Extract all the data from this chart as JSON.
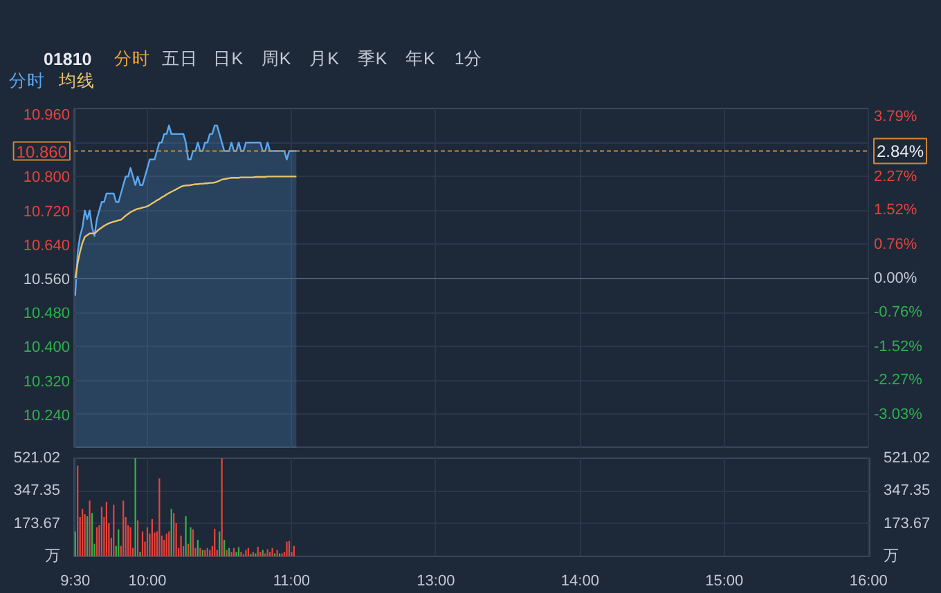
{
  "chart_data": [
    {
      "type": "line",
      "title": "01810",
      "annotations": [
        "分时",
        "五日",
        "日K",
        "周K",
        "月K",
        "季K",
        "年K",
        "1分",
        {
          "text": "2.84%",
          "y": 10.86
        }
      ],
      "legend": "top left",
      "grid": true,
      "tick_labels": "y",
      "categories": [
        null,
        null,
        null,
        null,
        null,
        null,
        null,
        null,
        null,
        null,
        null,
        null,
        null,
        null,
        null,
        null,
        null,
        null,
        null,
        null,
        null,
        null,
        null,
        null,
        null,
        null,
        null,
        null,
        null,
        null,
        null,
        null,
        null,
        null,
        null,
        null,
        null,
        null,
        null,
        null,
        null,
        null,
        null,
        null,
        null,
        null,
        null,
        null,
        null,
        null,
        null,
        null,
        null,
        null,
        null,
        null,
        null,
        null,
        null,
        null,
        null,
        null,
        null,
        null,
        null,
        null,
        null,
        null,
        null,
        null,
        null,
        null,
        null,
        null,
        null,
        null,
        null,
        null,
        null,
        null,
        null,
        null,
        null,
        null,
        null,
        null,
        null,
        null,
        null,
        null,
        null,
        null,
        null,
        null,
        null,
        null,
        null,
        null,
        null,
        null,
        null,
        null,
        null,
        null,
        null,
        null,
        null,
        null,
        null,
        null,
        null,
        null,
        null,
        null,
        null,
        null,
        null,
        null,
        null,
        null,
        null,
        null,
        null,
        null,
        null,
        null,
        null,
        null,
        null,
        null,
        null,
        null,
        null,
        null,
        null,
        null,
        null,
        null,
        null,
        null,
        null,
        null,
        null,
        null,
        null,
        null,
        null,
        null,
        null,
        null,
        null,
        null,
        null,
        null,
        null,
        null,
        null,
        null,
        null,
        null,
        null,
        null,
        null,
        null,
        null,
        null,
        null,
        null,
        null,
        null,
        null,
        null,
        null,
        null,
        null,
        null,
        null,
        null,
        null,
        null,
        null,
        null,
        null,
        null,
        null,
        null,
        null,
        null,
        null,
        null,
        null,
        null,
        null,
        null,
        null,
        null,
        null,
        null,
        null,
        null,
        null,
        null,
        null,
        null,
        null,
        null,
        null,
        null,
        null,
        null,
        null,
        null,
        null,
        null,
        null,
        null,
        null,
        null,
        null,
        null,
        null,
        null,
        null,
        null,
        null,
        null,
        null,
        null,
        null,
        null,
        null,
        null,
        null,
        null,
        null,
        null,
        null,
        null,
        null,
        null,
        null,
        null,
        null,
        null,
        null,
        null,
        null,
        null,
        null,
        null,
        null,
        null,
        null,
        null,
        null,
        null,
        null,
        null,
        null,
        null,
        null,
        null,
        null,
        null,
        null,
        null,
        null,
        null,
        null,
        null,
        null,
        null,
        null,
        null,
        null,
        null,
        null,
        null,
        null,
        null,
        null,
        null,
        null,
        null,
        null,
        null,
        null,
        null,
        null,
        null,
        null,
        null,
        null,
        null,
        null,
        null,
        null,
        null,
        null,
        null,
        null,
        null,
        null,
        null,
        null,
        null,
        null,
        null,
        null,
        null,
        null,
        null,
        null,
        null,
        null,
        null,
        null,
        null,
        null,
        null,
        null,
        null,
        null,
        null,
        null,
        null,
        null,
        null,
        null,
        null,
        null
      ],
      "ylim": [
        10.16,
        10.96
      ],
      "yticks": [
        {
          "value": 10.96,
          "label": "10.960"
        },
        {
          "value": 10.88,
          "label": null
        },
        {
          "value": 10.8,
          "label": "10.800"
        },
        {
          "value": 10.72,
          "label": "10.720"
        },
        {
          "value": 10.64,
          "label": "10.640"
        },
        {
          "value": 10.56,
          "label": "10.560"
        },
        {
          "value": 10.48,
          "label": "10.480"
        },
        {
          "value": 10.4,
          "label": "10.400"
        },
        {
          "value": 10.32,
          "label": "10.320"
        },
        {
          "value": 10.24,
          "label": "10.240"
        }
      ],
      "y2lim": [
        -3.79,
        3.79
      ],
      "y2ticks": [
        {
          "value": 3.79,
          "label": "3.79%"
        },
        {
          "value": 3.03,
          "label": null
        },
        {
          "value": 2.27,
          "label": "2.27%"
        },
        {
          "value": 1.52,
          "label": "1.52%"
        },
        {
          "value": 0.76,
          "label": "0.76%"
        },
        {
          "value": 0,
          "label": "0.00%"
        },
        {
          "value": -0.76,
          "label": "-0.76%"
        },
        {
          "value": -1.52,
          "label": "-1.52%"
        },
        {
          "value": -2.27,
          "label": "-2.27%"
        },
        {
          "value": -3.03,
          "label": "-3.03%"
        }
      ],
      "ref_lines": [
        {
          "axis": "y",
          "value": 10.56,
          "color": "#4f5c71"
        },
        {
          "axis": "y",
          "value": 10.86,
          "label": "10.860",
          "color": "#cf8836",
          "line_style": "dashed"
        }
      ],
      "series": [
        {
          "name": "分时",
          "type": "area",
          "color": "#5aa8f0",
          "values": [
            10.52,
            10.62,
            10.66,
            10.68,
            10.72,
            10.7,
            10.72,
            10.68,
            10.66,
            10.7,
            10.72,
            10.74,
            10.74,
            10.76,
            10.76,
            10.76,
            10.76,
            10.74,
            10.74,
            10.76,
            10.78,
            10.8,
            10.8,
            10.82,
            10.8,
            10.78,
            10.8,
            10.78,
            10.78,
            10.8,
            10.82,
            10.84,
            10.84,
            10.84,
            10.86,
            10.88,
            10.88,
            10.9,
            10.9,
            10.92,
            10.9,
            10.9,
            10.9,
            10.9,
            10.9,
            10.9,
            10.88,
            10.84,
            10.84,
            10.86,
            10.86,
            10.88,
            10.86,
            10.86,
            10.88,
            10.88,
            10.9,
            10.9,
            10.92,
            10.92,
            10.9,
            10.88,
            10.86,
            10.86,
            10.86,
            10.88,
            10.86,
            10.86,
            10.88,
            10.86,
            10.86,
            10.88,
            10.88,
            10.88,
            10.88,
            10.88,
            10.88,
            10.88,
            10.86,
            10.86,
            10.88,
            10.86,
            10.86,
            10.86,
            10.86,
            10.86,
            10.86,
            10.86,
            10.84,
            10.86,
            10.86,
            10.86,
            10.86,
            null,
            null,
            null,
            null,
            null,
            null,
            null,
            null,
            null,
            null,
            null,
            null,
            null,
            null,
            null,
            null,
            null,
            null,
            null,
            null,
            null,
            null,
            null,
            null,
            null,
            null,
            null,
            null,
            null,
            null,
            null,
            null,
            null,
            null,
            null,
            null,
            null,
            null,
            null,
            null,
            null,
            null,
            null,
            null,
            null,
            null,
            null,
            null,
            null,
            null,
            null,
            null,
            null,
            null,
            null,
            null,
            null,
            null,
            null,
            null,
            null,
            null,
            null,
            null,
            null,
            null,
            null,
            null,
            null,
            null,
            null,
            null,
            null,
            null,
            null,
            null,
            null,
            null,
            null,
            null,
            null,
            null,
            null,
            null,
            null,
            null,
            null,
            null,
            null,
            null,
            null,
            null,
            null,
            null,
            null,
            null,
            null,
            null,
            null,
            null,
            null,
            null,
            null,
            null,
            null,
            null,
            null,
            null,
            null,
            null,
            null,
            null,
            null,
            null,
            null,
            null,
            null,
            null,
            null,
            null,
            null,
            null,
            null,
            null,
            null,
            null,
            null,
            null,
            null,
            null,
            null,
            null,
            null,
            null,
            null,
            null,
            null,
            null,
            null,
            null,
            null,
            null,
            null,
            null,
            null,
            null,
            null,
            null,
            null,
            null,
            null,
            null,
            null,
            null,
            null,
            null,
            null,
            null,
            null,
            null,
            null,
            null,
            null,
            null,
            null,
            null,
            null,
            null,
            null,
            null,
            null,
            null,
            null,
            null,
            null,
            null,
            null,
            null,
            null,
            null,
            null,
            null,
            null,
            null,
            null,
            null,
            null,
            null,
            null,
            null,
            null,
            null,
            null,
            null,
            null,
            null,
            null,
            null,
            null,
            null,
            null,
            null,
            null,
            null,
            null,
            null,
            null,
            null,
            null,
            null,
            null,
            null,
            null,
            null,
            null,
            null,
            null,
            null,
            null,
            null,
            null,
            null,
            null,
            null,
            null,
            null,
            null,
            null,
            null,
            null,
            null,
            null,
            null,
            null,
            null,
            null,
            null,
            null
          ]
        },
        {
          "name": "均线",
          "type": "line",
          "color": "#e9c46a",
          "values": [
            10.56,
            10.596,
            10.623,
            10.644,
            10.658,
            10.662,
            10.666,
            10.666,
            10.666,
            10.671,
            10.676,
            10.68,
            10.684,
            10.687,
            10.69,
            10.692,
            10.694,
            10.695,
            10.697,
            10.698,
            10.703,
            10.708,
            10.712,
            10.716,
            10.719,
            10.722,
            10.724,
            10.725,
            10.727,
            10.728,
            10.73,
            10.733,
            10.737,
            10.74,
            10.744,
            10.747,
            10.751,
            10.754,
            10.758,
            10.761,
            10.764,
            10.767,
            10.77,
            10.773,
            10.776,
            10.778,
            10.779,
            10.779,
            10.78,
            10.781,
            10.782,
            10.782,
            10.783,
            10.783,
            10.784,
            10.784,
            10.785,
            10.785,
            10.786,
            10.788,
            10.79,
            10.793,
            10.794,
            10.795,
            10.796,
            10.797,
            10.797,
            10.797,
            10.797,
            10.798,
            10.798,
            10.798,
            10.798,
            10.798,
            10.798,
            10.799,
            10.799,
            10.799,
            10.799,
            10.799,
            10.8,
            10.8,
            10.8,
            10.8,
            10.8,
            10.8,
            10.8,
            10.8,
            10.8,
            10.8,
            10.8,
            10.8,
            10.8,
            null,
            null,
            null,
            null,
            null,
            null,
            null,
            null,
            null,
            null,
            null,
            null,
            null,
            null,
            null,
            null,
            null,
            null,
            null,
            null,
            null,
            null,
            null,
            null,
            null,
            null,
            null,
            null,
            null,
            null,
            null,
            null,
            null,
            null,
            null,
            null,
            null,
            null,
            null,
            null,
            null,
            null,
            null,
            null,
            null,
            null,
            null,
            null,
            null,
            null,
            null,
            null,
            null,
            null,
            null,
            null,
            null,
            null,
            null,
            null,
            null,
            null,
            null,
            null,
            null,
            null,
            null,
            null,
            null,
            null,
            null,
            null,
            null,
            null,
            null,
            null,
            null,
            null,
            null,
            null,
            null,
            null,
            null,
            null,
            null,
            null,
            null,
            null,
            null,
            null,
            null,
            null,
            null,
            null,
            null,
            null,
            null,
            null,
            null,
            null,
            null,
            null,
            null,
            null,
            null,
            null,
            null,
            null,
            null,
            null,
            null,
            null,
            null,
            null,
            null,
            null,
            null,
            null,
            null,
            null,
            null,
            null,
            null,
            null,
            null,
            null,
            null,
            null,
            null,
            null,
            null,
            null,
            null,
            null,
            null,
            null,
            null,
            null,
            null,
            null,
            null,
            null,
            null,
            null,
            null,
            null,
            null,
            null,
            null,
            null,
            null,
            null,
            null,
            null,
            null,
            null,
            null,
            null,
            null,
            null,
            null,
            null,
            null,
            null,
            null,
            null,
            null,
            null,
            null,
            null,
            null,
            null,
            null,
            null,
            null,
            null,
            null,
            null,
            null,
            null,
            null,
            null,
            null,
            null,
            null,
            null,
            null,
            null,
            null,
            null,
            null,
            null,
            null,
            null,
            null,
            null,
            null,
            null,
            null,
            null,
            null,
            null,
            null,
            null,
            null,
            null,
            null,
            null,
            null,
            null,
            null,
            null,
            null,
            null,
            null,
            null,
            null,
            null,
            null,
            null,
            null,
            null,
            null,
            null,
            null,
            null,
            null,
            null,
            null,
            null,
            null,
            null,
            null,
            null,
            null,
            null,
            null,
            null
          ]
        }
      ]
    },
    {
      "type": "bar",
      "grid": true,
      "categories": [
        "9:30",
        null,
        null,
        null,
        null,
        null,
        null,
        null,
        null,
        null,
        null,
        null,
        null,
        null,
        null,
        null,
        null,
        null,
        null,
        null,
        null,
        null,
        null,
        null,
        null,
        null,
        null,
        null,
        null,
        null,
        "10:00",
        null,
        null,
        null,
        null,
        null,
        null,
        null,
        null,
        null,
        null,
        null,
        null,
        null,
        null,
        null,
        null,
        null,
        null,
        null,
        null,
        null,
        null,
        null,
        null,
        null,
        null,
        null,
        null,
        null,
        null,
        null,
        null,
        null,
        null,
        null,
        null,
        null,
        null,
        null,
        null,
        null,
        null,
        null,
        null,
        null,
        null,
        null,
        null,
        null,
        null,
        null,
        null,
        null,
        null,
        null,
        null,
        null,
        null,
        null,
        "11:00",
        null,
        null,
        null,
        null,
        null,
        null,
        null,
        null,
        null,
        null,
        null,
        null,
        null,
        null,
        null,
        null,
        null,
        null,
        null,
        null,
        null,
        null,
        null,
        null,
        null,
        null,
        null,
        null,
        null,
        null,
        null,
        null,
        null,
        null,
        null,
        null,
        null,
        null,
        null,
        null,
        null,
        null,
        null,
        null,
        null,
        null,
        null,
        null,
        null,
        null,
        null,
        null,
        null,
        null,
        null,
        null,
        null,
        null,
        null,
        "13:00",
        null,
        null,
        null,
        null,
        null,
        null,
        null,
        null,
        null,
        null,
        null,
        null,
        null,
        null,
        null,
        null,
        null,
        null,
        null,
        null,
        null,
        null,
        null,
        null,
        null,
        null,
        null,
        null,
        null,
        null,
        null,
        null,
        null,
        null,
        null,
        null,
        null,
        null,
        null,
        null,
        null,
        null,
        null,
        null,
        null,
        null,
        null,
        null,
        null,
        null,
        null,
        null,
        null,
        null,
        null,
        null,
        null,
        null,
        null,
        "14:00",
        null,
        null,
        null,
        null,
        null,
        null,
        null,
        null,
        null,
        null,
        null,
        null,
        null,
        null,
        null,
        null,
        null,
        null,
        null,
        null,
        null,
        null,
        null,
        null,
        null,
        null,
        null,
        null,
        null,
        null,
        null,
        null,
        null,
        null,
        null,
        null,
        null,
        null,
        null,
        null,
        null,
        null,
        null,
        null,
        null,
        null,
        null,
        null,
        null,
        null,
        null,
        null,
        null,
        null,
        null,
        null,
        null,
        null,
        null,
        "15:00",
        null,
        null,
        null,
        null,
        null,
        null,
        null,
        null,
        null,
        null,
        null,
        null,
        null,
        null,
        null,
        null,
        null,
        null,
        null,
        null,
        null,
        null,
        null,
        null,
        null,
        null,
        null,
        null,
        null,
        null,
        null,
        null,
        null,
        null,
        null,
        null,
        null,
        null,
        null,
        null,
        null,
        null,
        null,
        null,
        null,
        null,
        null,
        null,
        null,
        null,
        null,
        null,
        null,
        null,
        null,
        null,
        null,
        null,
        null,
        "16:00"
      ],
      "ylim": [
        0,
        521.02
      ],
      "yticks": [
        {
          "value": 0,
          "label": "万"
        },
        173.67,
        347.35,
        521.02
      ],
      "y2lim": [
        0,
        521.02
      ],
      "y2ticks": [
        {
          "value": 0,
          "label": "万"
        },
        173.67,
        347.35,
        521.02
      ],
      "values": [
        132,
        482,
        209,
        252,
        224,
        213,
        296,
        230,
        67,
        154,
        165,
        263,
        209,
        289,
        176,
        99,
        274,
        56,
        143,
        56,
        296,
        209,
        165,
        154,
        45,
        521,
        191,
        23,
        132,
        78,
        154,
        121,
        198,
        126,
        132,
        414,
        110,
        88,
        121,
        132,
        252,
        230,
        176,
        45,
        110,
        55,
        213,
        67,
        154,
        143,
        45,
        88,
        45,
        34,
        34,
        45,
        34,
        56,
        147,
        34,
        132,
        521,
        88,
        34,
        45,
        23,
        45,
        23,
        49,
        23,
        12,
        34,
        45,
        12,
        23,
        16,
        51,
        23,
        34,
        16,
        38,
        23,
        45,
        16,
        34,
        16,
        16,
        23,
        78,
        82,
        23,
        56,
        null,
        null,
        null,
        null,
        null,
        null,
        null,
        null,
        null,
        null,
        null,
        null,
        null,
        null,
        null,
        null,
        null,
        null,
        null,
        null,
        null,
        null,
        null,
        null,
        null,
        null,
        null,
        null,
        null,
        null,
        null,
        null,
        null,
        null,
        null,
        null,
        null,
        null,
        null,
        null,
        null,
        null,
        null,
        null,
        null,
        null,
        null,
        null,
        null,
        null,
        null,
        null,
        null,
        null,
        null,
        null,
        null,
        null,
        null,
        null,
        null,
        null,
        null,
        null,
        null,
        null,
        null,
        null,
        null,
        null,
        null,
        null,
        null,
        null,
        null,
        null,
        null,
        null,
        null,
        null,
        null,
        null,
        null,
        null,
        null,
        null,
        null,
        null,
        null,
        null,
        null,
        null,
        null,
        null,
        null,
        null,
        null,
        null,
        null,
        null,
        null,
        null,
        null,
        null,
        null,
        null,
        null,
        null,
        null,
        null,
        null,
        null,
        null,
        null,
        null,
        null,
        null,
        null,
        null,
        null,
        null,
        null,
        null,
        null,
        null,
        null,
        null,
        null,
        null,
        null,
        null,
        null,
        null,
        null,
        null,
        null,
        null,
        null,
        null,
        null,
        null,
        null,
        null,
        null,
        null,
        null,
        null,
        null,
        null,
        null,
        null,
        null,
        null,
        null,
        null,
        null,
        null,
        null,
        null,
        null,
        null,
        null,
        null,
        null,
        null,
        null,
        null,
        null,
        null,
        null,
        null,
        null,
        null,
        null,
        null,
        null,
        null,
        null,
        null,
        null,
        null,
        null,
        null,
        null,
        null,
        null,
        null,
        null,
        null,
        null,
        null,
        null,
        null,
        null,
        null,
        null,
        null,
        null,
        null,
        null,
        null,
        null,
        null,
        null,
        null,
        null,
        null,
        null,
        null,
        null,
        null,
        null,
        null,
        null,
        null,
        null,
        null,
        null,
        null,
        null,
        null,
        null,
        null,
        null,
        null,
        null,
        null,
        null,
        null,
        null,
        null,
        null,
        null,
        null,
        null,
        null,
        null,
        null,
        null
      ],
      "colors": [
        "#35b04c",
        "#e5433b",
        "#e5433b",
        "#e5433b",
        "#e5433b",
        "#35b04c",
        "#e5433b",
        "#35b04c",
        "#35b04c",
        "#e5433b",
        "#e5433b",
        "#e5433b",
        "#e5433b",
        "#e5433b",
        "#e5433b",
        "#e5433b",
        "#e5433b",
        "#35b04c",
        "#35b04c",
        "#e5433b",
        "#e5433b",
        "#e5433b",
        "#e5433b",
        "#e5433b",
        "#e5433b",
        "#35b04c",
        "#e5433b",
        "#35b04c",
        "#e5433b",
        "#e5433b",
        "#e5433b",
        "#e5433b",
        "#e5433b",
        "#e5433b",
        "#e5433b",
        "#e5433b",
        "#e5433b",
        "#e5433b",
        "#e5433b",
        "#e5433b",
        "#35b04c",
        "#e5433b",
        "#e5433b",
        "#e5433b",
        "#e5433b",
        "#e5433b",
        "#35b04c",
        "#e5433b",
        "#35b04c",
        "#e5433b",
        "#e5433b",
        "#35b04c",
        "#e5433b",
        "#35b04c",
        "#e5433b",
        "#e5433b",
        "#e5433b",
        "#e5433b",
        "#e5433b",
        "#e5433b",
        "#35b04c",
        "#e5433b",
        "#35b04c",
        "#e5433b",
        "#35b04c",
        "#e5433b",
        "#e5433b",
        "#35b04c",
        "#35b04c",
        "#e5433b",
        "#e5433b",
        "#e5433b",
        "#e5433b",
        "#35b04c",
        "#e5433b",
        "#35b04c",
        "#e5433b",
        "#e5433b",
        "#35b04c",
        "#e5433b",
        "#e5433b",
        "#e5433b",
        "#e5433b",
        "#35b04c",
        "#e5433b",
        "#35b04c",
        "#e5433b",
        "#e5433b",
        "#e5433b",
        "#e5433b",
        "#e5433b",
        "#e5433b",
        null,
        null,
        null,
        null,
        null,
        null,
        null,
        null,
        null,
        null,
        null,
        null,
        null,
        null,
        null,
        null,
        null,
        null,
        null,
        null,
        null,
        null,
        null,
        null,
        null,
        null,
        null,
        null,
        null,
        null,
        null,
        null,
        null,
        null,
        null,
        null,
        null,
        null,
        null,
        null,
        null,
        null,
        null,
        null,
        null,
        null,
        null,
        null,
        null,
        null,
        null,
        null,
        null,
        null,
        null,
        null,
        null,
        null,
        null,
        null,
        null,
        null,
        null,
        null,
        null,
        null,
        null,
        null,
        null,
        null,
        null,
        null,
        null,
        null,
        null,
        null,
        null,
        null,
        null,
        null,
        null,
        null,
        null,
        null,
        null,
        null,
        null,
        null,
        null,
        null,
        null,
        null,
        null,
        null,
        null,
        null,
        null,
        null,
        null,
        null,
        null,
        null,
        null,
        null,
        null,
        null,
        null,
        null,
        null,
        null,
        null,
        null,
        null,
        null,
        null,
        null,
        null,
        null,
        null,
        null,
        null,
        null,
        null,
        null,
        null,
        null,
        null,
        null,
        null,
        null,
        null,
        null,
        null,
        null,
        null,
        null,
        null,
        null,
        null,
        null,
        null,
        null,
        null,
        null,
        null,
        null,
        null,
        null,
        null,
        null,
        null,
        null,
        null,
        null,
        null,
        null,
        null,
        null,
        null,
        null,
        null,
        null,
        null,
        null,
        null,
        null,
        null,
        null,
        null,
        null,
        null,
        null,
        null,
        null,
        null,
        null,
        null,
        null,
        null,
        null,
        null,
        null,
        null,
        null,
        null,
        null,
        null,
        null,
        null,
        null,
        null,
        null,
        null,
        null,
        null,
        null,
        null,
        null,
        null,
        null,
        null,
        null,
        null,
        null,
        null,
        null,
        null,
        null,
        null,
        null,
        null,
        null,
        null,
        null,
        null,
        null,
        null,
        null,
        null,
        null,
        null,
        null,
        null,
        null,
        null,
        null,
        null,
        null,
        null,
        null,
        null,
        null,
        null,
        null,
        null,
        null,
        null,
        null,
        null
      ]
    }
  ]
}
